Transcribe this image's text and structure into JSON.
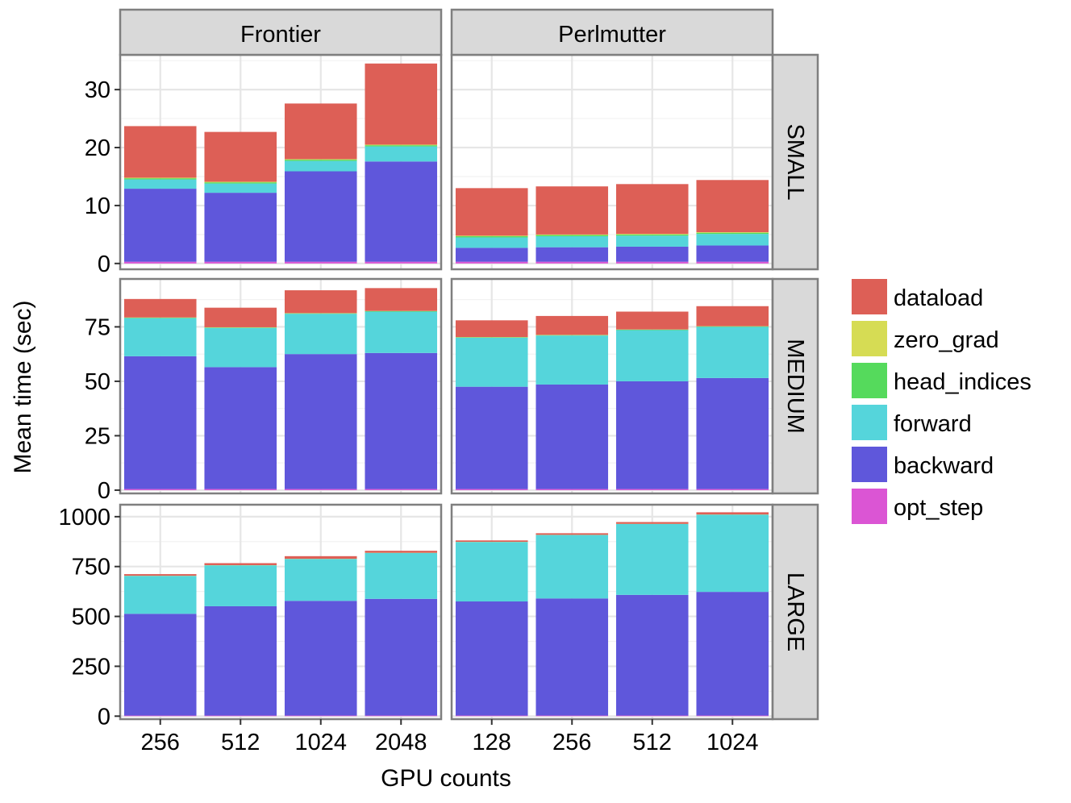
{
  "chart_data": {
    "type": "bar",
    "stacked": true,
    "xlabel": "GPU counts",
    "ylabel": "Mean time (sec)",
    "columns": [
      "Frontier",
      "Perlmutter"
    ],
    "rows": [
      "SMALL",
      "MEDIUM",
      "LARGE"
    ],
    "legend": {
      "placement": "right",
      "entries": [
        {
          "key": "dataload",
          "label": "dataload",
          "color": "#DD5F56"
        },
        {
          "key": "zero_grad",
          "label": "zero_grad",
          "color": "#D6DC54"
        },
        {
          "key": "head_indices",
          "label": "head_indices",
          "color": "#55DA5C"
        },
        {
          "key": "forward",
          "label": "forward",
          "color": "#55D5DB"
        },
        {
          "key": "backward",
          "label": "backward",
          "color": "#5F57DB"
        },
        {
          "key": "opt_step",
          "label": "opt_step",
          "color": "#DB55D4"
        }
      ]
    },
    "stack_order": [
      "opt_step",
      "backward",
      "forward",
      "head_indices",
      "zero_grad",
      "dataload"
    ],
    "panels": [
      {
        "row": "SMALL",
        "column": "Frontier",
        "categories": [
          "256",
          "512",
          "1024",
          "2048"
        ],
        "series": {
          "opt_step": [
            0.3,
            0.3,
            0.3,
            0.3
          ],
          "backward": [
            12.6,
            11.9,
            15.6,
            17.3
          ],
          "forward": [
            1.6,
            1.6,
            1.8,
            2.6
          ],
          "head_indices": [
            0.2,
            0.2,
            0.2,
            0.2
          ],
          "zero_grad": [
            0.1,
            0.1,
            0.1,
            0.1
          ],
          "dataload": [
            8.9,
            8.6,
            9.6,
            14.0
          ]
        }
      },
      {
        "row": "SMALL",
        "column": "Perlmutter",
        "categories": [
          "128",
          "256",
          "512",
          "1024"
        ],
        "series": {
          "opt_step": [
            0.3,
            0.3,
            0.3,
            0.3
          ],
          "backward": [
            2.4,
            2.5,
            2.6,
            2.8
          ],
          "forward": [
            1.8,
            1.9,
            1.9,
            2.0
          ],
          "head_indices": [
            0.2,
            0.2,
            0.2,
            0.2
          ],
          "zero_grad": [
            0.1,
            0.1,
            0.1,
            0.1
          ],
          "dataload": [
            8.2,
            8.3,
            8.6,
            9.0
          ]
        }
      },
      {
        "row": "MEDIUM",
        "column": "Frontier",
        "categories": [
          "256",
          "512",
          "1024",
          "2048"
        ],
        "series": {
          "opt_step": [
            0.5,
            0.5,
            0.5,
            0.5
          ],
          "backward": [
            61.0,
            56.0,
            62.0,
            62.5
          ],
          "forward": [
            17.5,
            18.0,
            18.5,
            19.0
          ],
          "head_indices": [
            0.2,
            0.2,
            0.2,
            0.2
          ],
          "zero_grad": [
            0.1,
            0.1,
            0.1,
            0.1
          ],
          "dataload": [
            8.5,
            9.0,
            10.5,
            10.5
          ]
        }
      },
      {
        "row": "MEDIUM",
        "column": "Perlmutter",
        "categories": [
          "128",
          "256",
          "512",
          "1024"
        ],
        "series": {
          "opt_step": [
            0.5,
            0.5,
            0.5,
            0.5
          ],
          "backward": [
            47.0,
            48.0,
            49.5,
            51.0
          ],
          "forward": [
            22.5,
            22.5,
            23.5,
            23.5
          ],
          "head_indices": [
            0.2,
            0.2,
            0.2,
            0.2
          ],
          "zero_grad": [
            0.1,
            0.1,
            0.1,
            0.1
          ],
          "dataload": [
            7.7,
            8.7,
            8.2,
            9.2
          ]
        }
      },
      {
        "row": "LARGE",
        "column": "Frontier",
        "categories": [
          "256",
          "512",
          "1024",
          "2048"
        ],
        "series": {
          "opt_step": [
            3,
            3,
            3,
            3
          ],
          "backward": [
            510,
            548,
            575,
            585
          ],
          "forward": [
            190,
            205,
            210,
            230
          ],
          "head_indices": [
            0.5,
            0.5,
            0.5,
            0.5
          ],
          "zero_grad": [
            0.5,
            0.5,
            0.5,
            0.5
          ],
          "dataload": [
            8,
            10,
            13,
            10
          ]
        }
      },
      {
        "row": "LARGE",
        "column": "Perlmutter",
        "categories": [
          "128",
          "256",
          "512",
          "1024"
        ],
        "series": {
          "opt_step": [
            3,
            3,
            3,
            3
          ],
          "backward": [
            572,
            587,
            605,
            620
          ],
          "forward": [
            298,
            318,
            355,
            387
          ],
          "head_indices": [
            0.5,
            0.5,
            0.5,
            0.5
          ],
          "zero_grad": [
            0.5,
            0.5,
            0.5,
            0.5
          ],
          "dataload": [
            7,
            8,
            9,
            11
          ]
        }
      }
    ],
    "y_axes": [
      {
        "row": "SMALL",
        "ylim": [
          -1,
          36
        ],
        "ticks": [
          0,
          10,
          20,
          30
        ]
      },
      {
        "row": "MEDIUM",
        "ylim": [
          -1.5,
          97
        ],
        "ticks": [
          0,
          25,
          50,
          75
        ]
      },
      {
        "row": "LARGE",
        "ylim": [
          -15,
          1060
        ],
        "ticks": [
          0,
          250,
          500,
          750,
          1000
        ]
      }
    ],
    "grid": true
  }
}
